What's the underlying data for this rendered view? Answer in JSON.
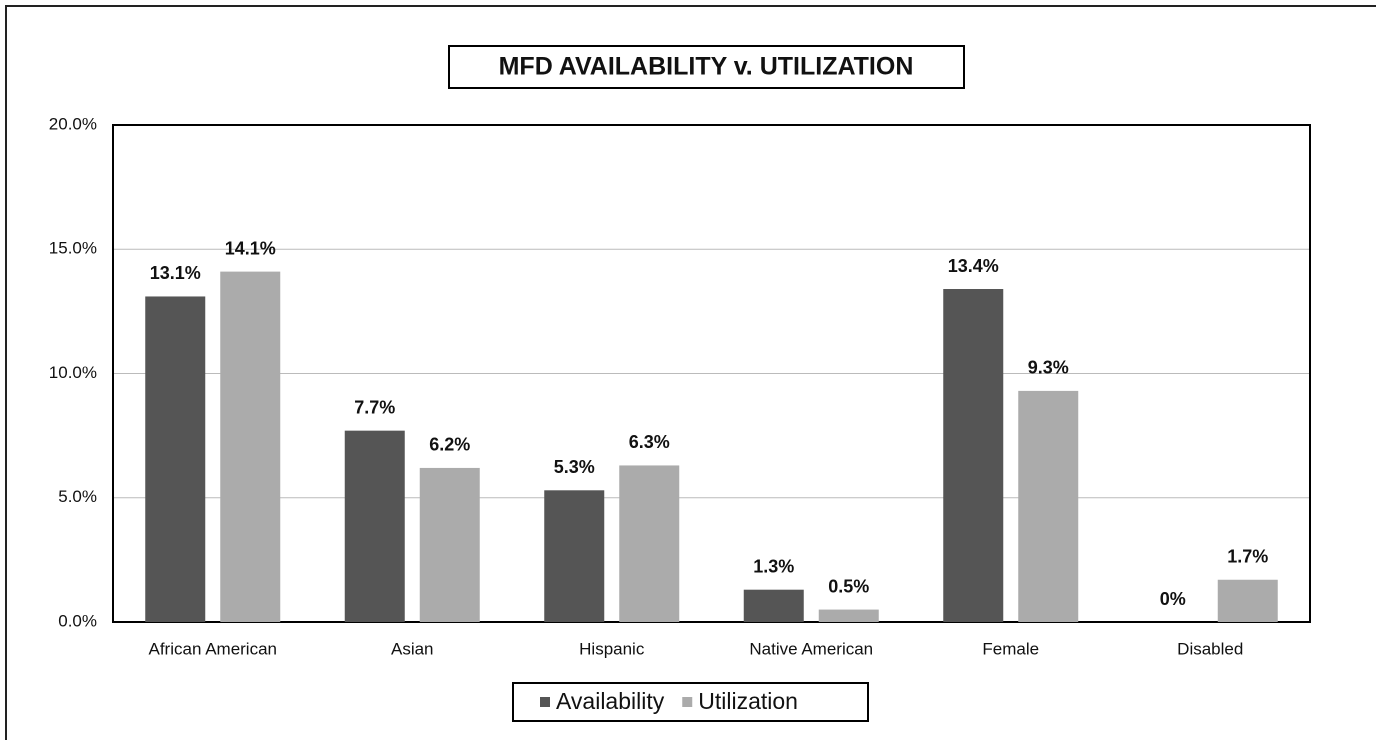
{
  "chart_data": {
    "type": "bar",
    "title": "MFD AVAILABILITY v. UTILIZATION",
    "categories": [
      "African American",
      "Asian",
      "Hispanic",
      "Native American",
      "Female",
      "Disabled"
    ],
    "series": [
      {
        "name": "Availability",
        "color": "#555555",
        "values": [
          13.1,
          7.7,
          5.3,
          1.3,
          13.4,
          0
        ],
        "value_labels": [
          "13.1%",
          "7.7%",
          "5.3%",
          "1.3%",
          "13.4%",
          "0%"
        ]
      },
      {
        "name": "Utilization",
        "color": "#ababab",
        "values": [
          14.1,
          6.2,
          6.3,
          0.5,
          9.3,
          1.7
        ],
        "value_labels": [
          "14.1%",
          "6.2%",
          "6.3%",
          "0.5%",
          "9.3%",
          "1.7%"
        ]
      }
    ],
    "ylim": [
      0,
      20
    ],
    "yticks": [
      {
        "value": 0,
        "label": "0.0%"
      },
      {
        "value": 5,
        "label": "5.0%"
      },
      {
        "value": 10,
        "label": "10.0%"
      },
      {
        "value": 15,
        "label": "15.0%"
      },
      {
        "value": 20,
        "label": "20.0%"
      }
    ],
    "grid": true,
    "legend": "bottom"
  }
}
